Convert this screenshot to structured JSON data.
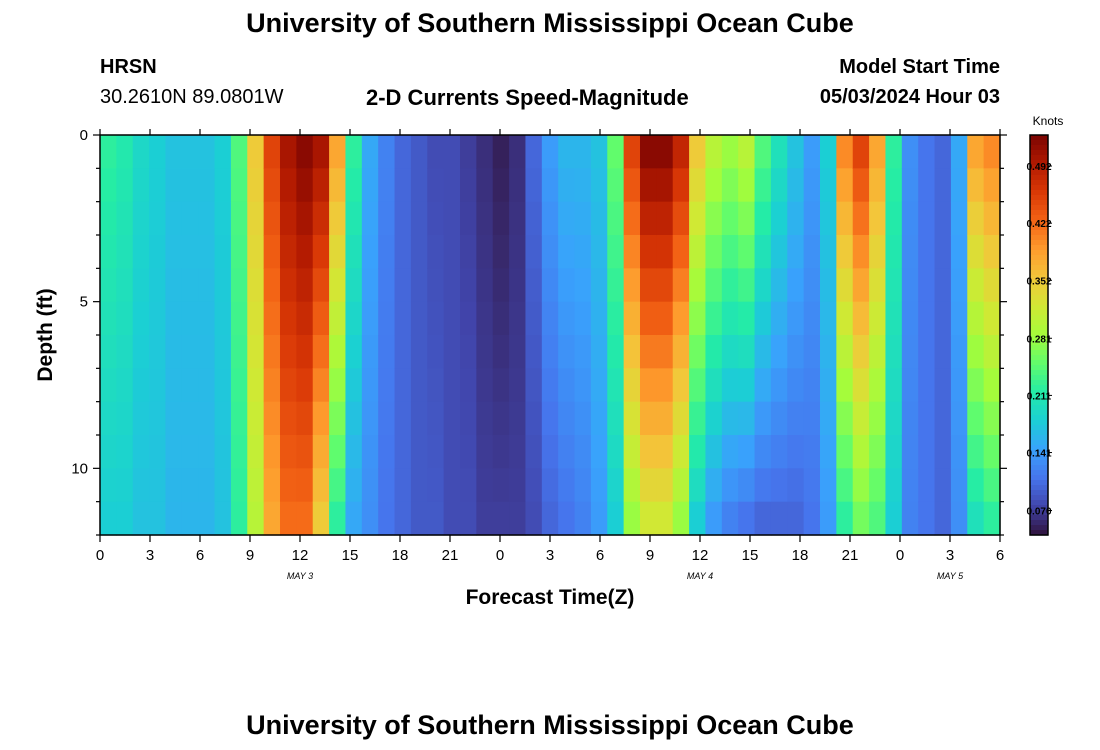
{
  "header": {
    "title": "University of Southern Mississippi Ocean Cube",
    "station": "HRSN",
    "coords": "30.2610N  89.0801W",
    "chart_title": "2-D Currents Speed-Magnitude",
    "start_label": "Model Start Time",
    "start_value": "05/03/2024 Hour 03"
  },
  "footer": {
    "title": "University of Southern Mississippi Ocean Cube"
  },
  "chart_data": {
    "type": "heatmap",
    "title": "2-D Currents Speed-Magnitude",
    "xlabel": "Forecast Time(Z)",
    "ylabel": "Depth (ft)",
    "colorbar_label": "Knots",
    "x_ticks": [
      "0",
      "3",
      "6",
      "9",
      "12",
      "15",
      "18",
      "21",
      "0",
      "3",
      "6",
      "9",
      "12",
      "15",
      "18",
      "21",
      "0",
      "3",
      "6"
    ],
    "date_labels": [
      {
        "text": "MAY 3",
        "hour": 12
      },
      {
        "text": "MAY 4",
        "hour": 36
      },
      {
        "text": "MAY 5",
        "hour": 51
      }
    ],
    "x_range_hours": [
      0,
      54
    ],
    "y_ticks": [
      "0",
      "5",
      "10"
    ],
    "y_tick_values": [
      0,
      5,
      10
    ],
    "y_range_ft": [
      0,
      12
    ],
    "colorbar_ticks": [
      "0.492",
      "0.422",
      "0.352",
      "0.281",
      "0.211",
      "0.141",
      "0.070"
    ],
    "colorbar_tick_values": [
      0.492,
      0.422,
      0.352,
      0.281,
      0.211,
      0.141,
      0.07
    ],
    "color_range": [
      0.04,
      0.53
    ],
    "surface_speed_knots": [
      0.22,
      0.21,
      0.19,
      0.18,
      0.17,
      0.17,
      0.17,
      0.18,
      0.24,
      0.35,
      0.45,
      0.5,
      0.52,
      0.5,
      0.38,
      0.22,
      0.15,
      0.12,
      0.1,
      0.09,
      0.08,
      0.08,
      0.07,
      0.06,
      0.05,
      0.06,
      0.1,
      0.14,
      0.16,
      0.16,
      0.17,
      0.25,
      0.45,
      0.52,
      0.52,
      0.48,
      0.35,
      0.3,
      0.28,
      0.3,
      0.24,
      0.2,
      0.17,
      0.14,
      0.18,
      0.4,
      0.45,
      0.38,
      0.22,
      0.13,
      0.11,
      0.1,
      0.15,
      0.38,
      0.4
    ],
    "bottom_speed_knots": [
      0.18,
      0.18,
      0.17,
      0.17,
      0.16,
      0.16,
      0.16,
      0.17,
      0.22,
      0.3,
      0.38,
      0.42,
      0.42,
      0.35,
      0.22,
      0.15,
      0.13,
      0.11,
      0.1,
      0.09,
      0.09,
      0.08,
      0.08,
      0.07,
      0.07,
      0.07,
      0.08,
      0.1,
      0.11,
      0.12,
      0.14,
      0.18,
      0.28,
      0.32,
      0.32,
      0.28,
      0.18,
      0.14,
      0.12,
      0.11,
      0.1,
      0.1,
      0.1,
      0.11,
      0.14,
      0.22,
      0.26,
      0.24,
      0.18,
      0.12,
      0.11,
      0.1,
      0.13,
      0.2,
      0.22
    ]
  },
  "colors": {
    "scale": [
      "#30123b",
      "#4145ab",
      "#4675ed",
      "#39a2fc",
      "#1bcfd4",
      "#24eca6",
      "#61fc6c",
      "#a4fc3b",
      "#d1e834",
      "#f3c63a",
      "#fe9b2d",
      "#f36315",
      "#d93806",
      "#b11901",
      "#7a0402"
    ]
  }
}
